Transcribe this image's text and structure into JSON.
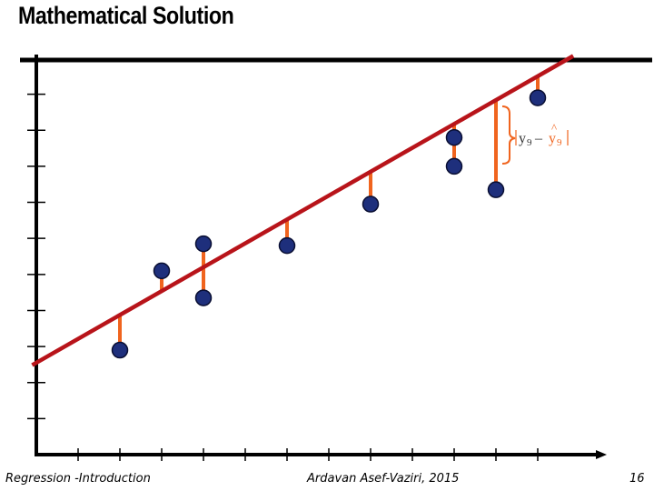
{
  "slide": {
    "title": "Mathematical Solution",
    "footer_left": "Regression -Introduction",
    "footer_center": "Ardavan Asef-Vaziri, 2015",
    "page_number": "16"
  },
  "colors": {
    "regression_line": "#b8141a",
    "residual": "#f0641e",
    "point_fill": "#1e2f7c",
    "point_stroke": "#0a0f33",
    "axis": "#000000"
  },
  "chart_data": {
    "type": "scatter",
    "title": "",
    "xlabel": "",
    "ylabel": "",
    "xlim": [
      0,
      14
    ],
    "ylim": [
      0,
      11
    ],
    "grid": false,
    "points": [
      {
        "x": 2,
        "y": 2.9
      },
      {
        "x": 3,
        "y": 5.1
      },
      {
        "x": 4,
        "y": 5.85
      },
      {
        "x": 4,
        "y": 4.35
      },
      {
        "x": 6,
        "y": 5.8
      },
      {
        "x": 8,
        "y": 6.95
      },
      {
        "x": 10,
        "y": 8.8
      },
      {
        "x": 10,
        "y": 8.0
      },
      {
        "x": 11,
        "y": 7.35
      },
      {
        "x": 12,
        "y": 9.9
      }
    ],
    "regression_line": {
      "intercept": 2.55,
      "slope": 0.6625
    },
    "annotation": {
      "point_index": 8,
      "label_y": "y",
      "label_yhat": "y",
      "subscript": "9",
      "hat": "^",
      "minus": "–"
    }
  }
}
